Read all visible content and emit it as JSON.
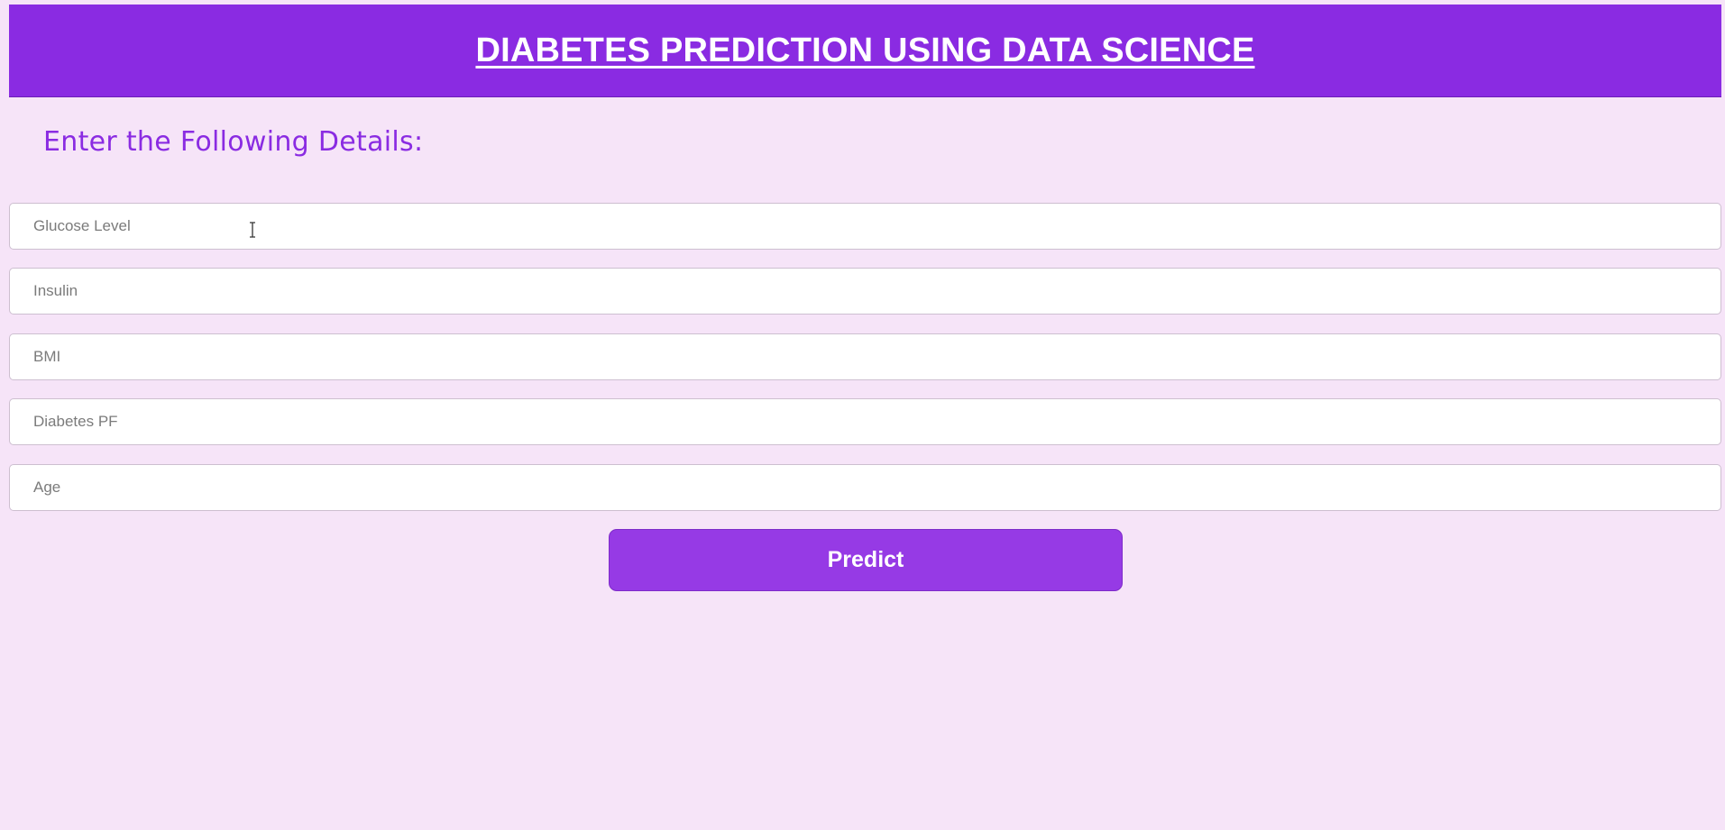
{
  "header": {
    "title": "DIABETES PREDICTION USING DATA SCIENCE"
  },
  "form": {
    "heading": "Enter the Following Details:",
    "fields": [
      {
        "name": "glucose",
        "placeholder": "Glucose Level",
        "value": ""
      },
      {
        "name": "insulin",
        "placeholder": "Insulin",
        "value": ""
      },
      {
        "name": "bmi",
        "placeholder": "BMI",
        "value": ""
      },
      {
        "name": "diabetes_pf",
        "placeholder": "Diabetes PF",
        "value": ""
      },
      {
        "name": "age",
        "placeholder": "Age",
        "value": ""
      }
    ],
    "submit_label": "Predict"
  },
  "colors": {
    "page_background": "#f6e4f8",
    "header_background": "#8a2be2",
    "heading_text": "#8a2be2",
    "button_background": "#963ae5",
    "button_text": "#ffffff"
  },
  "icons": {
    "cursor": "text-cursor-icon"
  }
}
